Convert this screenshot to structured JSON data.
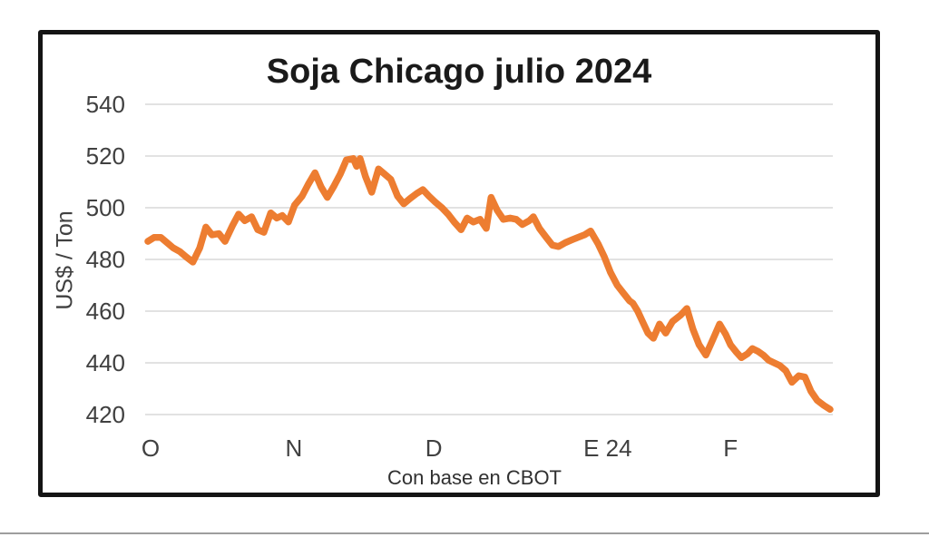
{
  "chart_data": {
    "type": "line",
    "title": "Soja Chicago julio 2024",
    "xlabel": "Con base en CBOT",
    "ylabel": "US$ / Ton",
    "ylim": [
      420,
      540
    ],
    "grid": "horizontal",
    "legend": "none",
    "line_color": "#ED7D31",
    "y_ticks": [
      540,
      520,
      500,
      480,
      460,
      440,
      420
    ],
    "x_ticks": [
      {
        "label": "O",
        "pos": 0.004
      },
      {
        "label": "N",
        "pos": 0.214
      },
      {
        "label": "D",
        "pos": 0.419
      },
      {
        "label": "E 24",
        "pos": 0.674
      },
      {
        "label": "F",
        "pos": 0.854
      }
    ],
    "series": [
      {
        "name": "Soja Chicago julio 2024 (US$/Ton)",
        "points": [
          [
            0.0,
            487
          ],
          [
            0.009,
            488.5
          ],
          [
            0.019,
            488.5
          ],
          [
            0.028,
            486.5
          ],
          [
            0.037,
            484.5
          ],
          [
            0.047,
            483
          ],
          [
            0.056,
            481
          ],
          [
            0.066,
            479
          ],
          [
            0.076,
            484.5
          ],
          [
            0.085,
            492.5
          ],
          [
            0.094,
            489.5
          ],
          [
            0.104,
            490
          ],
          [
            0.113,
            487
          ],
          [
            0.124,
            493
          ],
          [
            0.133,
            497.5
          ],
          [
            0.142,
            495
          ],
          [
            0.152,
            496.5
          ],
          [
            0.161,
            491.5
          ],
          [
            0.17,
            490.5
          ],
          [
            0.18,
            498
          ],
          [
            0.189,
            496
          ],
          [
            0.197,
            497
          ],
          [
            0.206,
            494.5
          ],
          [
            0.215,
            501
          ],
          [
            0.226,
            504.5
          ],
          [
            0.235,
            509
          ],
          [
            0.245,
            513.5
          ],
          [
            0.254,
            508
          ],
          [
            0.263,
            504
          ],
          [
            0.273,
            508.5
          ],
          [
            0.282,
            513
          ],
          [
            0.291,
            518.5
          ],
          [
            0.301,
            519
          ],
          [
            0.306,
            516
          ],
          [
            0.311,
            519
          ],
          [
            0.319,
            512
          ],
          [
            0.328,
            506
          ],
          [
            0.338,
            515
          ],
          [
            0.347,
            513
          ],
          [
            0.356,
            511
          ],
          [
            0.366,
            504.5
          ],
          [
            0.375,
            501.5
          ],
          [
            0.384,
            503.5
          ],
          [
            0.394,
            505.5
          ],
          [
            0.403,
            507
          ],
          [
            0.412,
            504.5
          ],
          [
            0.422,
            502
          ],
          [
            0.431,
            500
          ],
          [
            0.44,
            497.5
          ],
          [
            0.449,
            494.5
          ],
          [
            0.459,
            491.5
          ],
          [
            0.468,
            496
          ],
          [
            0.477,
            494.5
          ],
          [
            0.487,
            495.5
          ],
          [
            0.496,
            492
          ],
          [
            0.503,
            504
          ],
          [
            0.512,
            499
          ],
          [
            0.521,
            495.5
          ],
          [
            0.531,
            496
          ],
          [
            0.54,
            495.5
          ],
          [
            0.549,
            493.5
          ],
          [
            0.559,
            495
          ],
          [
            0.565,
            496.5
          ],
          [
            0.574,
            492
          ],
          [
            0.584,
            488.5
          ],
          [
            0.593,
            485.5
          ],
          [
            0.602,
            485
          ],
          [
            0.612,
            486.5
          ],
          [
            0.621,
            487.5
          ],
          [
            0.63,
            488.5
          ],
          [
            0.64,
            489.5
          ],
          [
            0.649,
            491
          ],
          [
            0.66,
            486
          ],
          [
            0.669,
            481
          ],
          [
            0.678,
            475
          ],
          [
            0.688,
            470
          ],
          [
            0.697,
            467
          ],
          [
            0.706,
            464
          ],
          [
            0.711,
            463
          ],
          [
            0.718,
            460
          ],
          [
            0.725,
            456
          ],
          [
            0.733,
            451.5
          ],
          [
            0.741,
            449.5
          ],
          [
            0.75,
            455
          ],
          [
            0.759,
            451.5
          ],
          [
            0.769,
            456
          ],
          [
            0.781,
            458.5
          ],
          [
            0.79,
            461
          ],
          [
            0.799,
            453
          ],
          [
            0.808,
            447
          ],
          [
            0.818,
            443
          ],
          [
            0.828,
            449
          ],
          [
            0.838,
            455
          ],
          [
            0.847,
            451
          ],
          [
            0.854,
            447
          ],
          [
            0.863,
            444
          ],
          [
            0.87,
            442
          ],
          [
            0.879,
            443.5
          ],
          [
            0.886,
            445.5
          ],
          [
            0.894,
            444.5
          ],
          [
            0.902,
            443
          ],
          [
            0.91,
            441
          ],
          [
            0.918,
            440
          ],
          [
            0.926,
            439
          ],
          [
            0.935,
            437
          ],
          [
            0.944,
            432.5
          ],
          [
            0.954,
            435
          ],
          [
            0.963,
            434.5
          ],
          [
            0.972,
            429
          ],
          [
            0.981,
            425.5
          ],
          [
            0.991,
            423.5
          ],
          [
            1.0,
            422
          ]
        ]
      }
    ]
  },
  "colors": {
    "line": "#ED7D31",
    "grid": "#D9D9D9",
    "tick_text": "#404040",
    "title_text": "#1A1A1A",
    "frame": "#141414",
    "divider": "#9E9E9E"
  }
}
